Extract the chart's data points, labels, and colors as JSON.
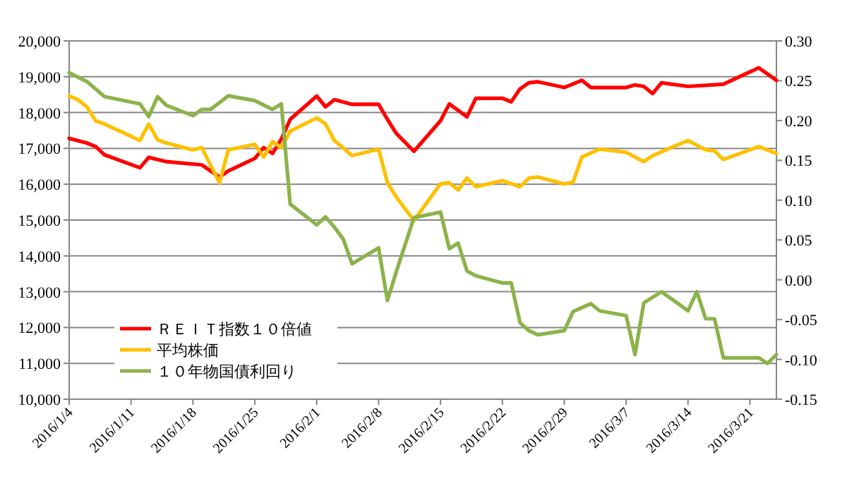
{
  "chart_data": {
    "type": "line",
    "legend": "bottom left",
    "grid": "y",
    "marker": "none",
    "line_style": "solid",
    "xlim": [
      "2016-01-04",
      "2016-03-24"
    ],
    "xticks": [
      {
        "value": "2016-01-04",
        "label": "2016/1/4"
      },
      {
        "value": "2016-01-11",
        "label": "2016/1/11"
      },
      {
        "value": "2016-01-18",
        "label": "2016/1/18"
      },
      {
        "value": "2016-01-25",
        "label": "2016/1/25"
      },
      {
        "value": "2016-02-01",
        "label": "2016/2/1"
      },
      {
        "value": "2016-02-08",
        "label": "2016/2/8"
      },
      {
        "value": "2016-02-15",
        "label": "2016/2/15"
      },
      {
        "value": "2016-02-22",
        "label": "2016/2/22"
      },
      {
        "value": "2016-02-29",
        "label": "2016/2/29"
      },
      {
        "value": "2016-03-07",
        "label": "2016/3/7"
      },
      {
        "value": "2016-03-14",
        "label": "2016/3/14"
      },
      {
        "value": "2016-03-21",
        "label": "2016/3/21"
      }
    ],
    "ylim": [
      10000,
      20000
    ],
    "yticks": [
      {
        "value": 10000,
        "label": "10,000"
      },
      {
        "value": 11000,
        "label": "11,000"
      },
      {
        "value": 12000,
        "label": "12,000"
      },
      {
        "value": 13000,
        "label": "13,000"
      },
      {
        "value": 14000,
        "label": "14,000"
      },
      {
        "value": 15000,
        "label": "15,000"
      },
      {
        "value": 16000,
        "label": "16,000"
      },
      {
        "value": 17000,
        "label": "17,000"
      },
      {
        "value": 18000,
        "label": "18,000"
      },
      {
        "value": 19000,
        "label": "19,000"
      },
      {
        "value": 20000,
        "label": "20,000"
      }
    ],
    "y2lim": [
      -0.15,
      0.3
    ],
    "y2ticks": [
      {
        "value": -0.15,
        "label": "-0.15"
      },
      {
        "value": -0.1,
        "label": "-0.10"
      },
      {
        "value": -0.05,
        "label": "-0.05"
      },
      {
        "value": 0,
        "label": "0.00"
      },
      {
        "value": 0.05,
        "label": "0.05"
      },
      {
        "value": 0.1,
        "label": "0.10"
      },
      {
        "value": 0.15,
        "label": "0.15"
      },
      {
        "value": 0.2,
        "label": "0.20"
      },
      {
        "value": 0.25,
        "label": "0.25"
      },
      {
        "value": 0.3,
        "label": "0.30"
      }
    ],
    "series": [
      {
        "name": "ＲＥＩＴ指数１０倍値",
        "color": "#ff0000",
        "x": [
          "2016-01-04",
          "2016-01-06",
          "2016-01-07",
          "2016-01-08",
          "2016-01-12",
          "2016-01-13",
          "2016-01-15",
          "2016-01-19",
          "2016-01-21",
          "2016-01-22",
          "2016-01-25",
          "2016-01-26",
          "2016-01-27",
          "2016-01-28",
          "2016-01-29",
          "2016-02-01",
          "2016-02-02",
          "2016-02-03",
          "2016-02-05",
          "2016-02-08",
          "2016-02-09",
          "2016-02-10",
          "2016-02-12",
          "2016-02-15",
          "2016-02-16",
          "2016-02-18",
          "2016-02-19",
          "2016-02-22",
          "2016-02-23",
          "2016-02-24",
          "2016-02-25",
          "2016-02-26",
          "2016-02-29",
          "2016-03-02",
          "2016-03-03",
          "2016-03-07",
          "2016-03-08",
          "2016-03-09",
          "2016-03-10",
          "2016-03-11",
          "2016-03-14",
          "2016-03-18",
          "2016-03-22",
          "2016-03-24"
        ],
        "values": [
          17280,
          17150,
          17050,
          16820,
          16460,
          16750,
          16630,
          16540,
          16200,
          16370,
          16720,
          17020,
          16860,
          17260,
          17810,
          18460,
          18160,
          18360,
          18230,
          18230,
          17810,
          17420,
          16920,
          17770,
          18240,
          17880,
          18400,
          18400,
          18300,
          18660,
          18830,
          18860,
          18700,
          18900,
          18700,
          18700,
          18770,
          18730,
          18530,
          18830,
          18730,
          18790,
          19250,
          18900
        ]
      },
      {
        "name": "平均株価",
        "color": "#ffc000",
        "x": [
          "2016-01-04",
          "2016-01-05",
          "2016-01-06",
          "2016-01-07",
          "2016-01-08",
          "2016-01-12",
          "2016-01-13",
          "2016-01-14",
          "2016-01-15",
          "2016-01-18",
          "2016-01-19",
          "2016-01-21",
          "2016-01-22",
          "2016-01-25",
          "2016-01-26",
          "2016-01-27",
          "2016-01-28",
          "2016-01-29",
          "2016-02-01",
          "2016-02-02",
          "2016-02-03",
          "2016-02-05",
          "2016-02-08",
          "2016-02-09",
          "2016-02-10",
          "2016-02-12",
          "2016-02-15",
          "2016-02-16",
          "2016-02-17",
          "2016-02-18",
          "2016-02-19",
          "2016-02-22",
          "2016-02-24",
          "2016-02-25",
          "2016-02-26",
          "2016-02-29",
          "2016-03-01",
          "2016-03-02",
          "2016-03-04",
          "2016-03-07",
          "2016-03-09",
          "2016-03-10",
          "2016-03-14",
          "2016-03-16",
          "2016-03-17",
          "2016-03-18",
          "2016-03-22",
          "2016-03-24"
        ],
        "values": [
          18460,
          18360,
          18160,
          17770,
          17680,
          17220,
          17680,
          17240,
          17150,
          16960,
          17020,
          16040,
          16960,
          17110,
          16760,
          17190,
          17020,
          17480,
          17850,
          17680,
          17220,
          16800,
          16980,
          16040,
          15640,
          14990,
          16010,
          16040,
          15840,
          16170,
          15930,
          16100,
          15930,
          16170,
          16200,
          16010,
          16060,
          16760,
          16980,
          16890,
          16630,
          16800,
          17220,
          16960,
          16930,
          16690,
          17050,
          16860
        ]
      },
      {
        "name": "１０年物国債利回り",
        "color": "#8cb34a",
        "axis": "y2",
        "x": [
          "2016-01-04",
          "2016-01-06",
          "2016-01-08",
          "2016-01-12",
          "2016-01-13",
          "2016-01-14",
          "2016-01-15",
          "2016-01-18",
          "2016-01-19",
          "2016-01-20",
          "2016-01-22",
          "2016-01-25",
          "2016-01-27",
          "2016-01-28",
          "2016-01-29",
          "2016-02-01",
          "2016-02-02",
          "2016-02-03",
          "2016-02-04",
          "2016-02-05",
          "2016-02-08",
          "2016-02-09",
          "2016-02-10",
          "2016-02-12",
          "2016-02-15",
          "2016-02-16",
          "2016-02-17",
          "2016-02-18",
          "2016-02-19",
          "2016-02-22",
          "2016-02-23",
          "2016-02-24",
          "2016-02-25",
          "2016-02-26",
          "2016-02-29",
          "2016-03-01",
          "2016-03-02",
          "2016-03-03",
          "2016-03-04",
          "2016-03-07",
          "2016-03-08",
          "2016-03-09",
          "2016-03-11",
          "2016-03-14",
          "2016-03-15",
          "2016-03-16",
          "2016-03-17",
          "2016-03-18",
          "2016-03-22",
          "2016-03-23",
          "2016-03-24"
        ],
        "values": [
          0.26,
          0.249,
          0.23,
          0.221,
          0.205,
          0.23,
          0.219,
          0.206,
          0.214,
          0.214,
          0.231,
          0.225,
          0.214,
          0.221,
          0.095,
          0.069,
          0.079,
          0.066,
          0.051,
          0.02,
          0.04,
          -0.026,
          0.01,
          0.078,
          0.085,
          0.039,
          0.046,
          0.011,
          0.005,
          -0.004,
          -0.004,
          -0.054,
          -0.064,
          -0.069,
          -0.064,
          -0.04,
          -0.035,
          -0.03,
          -0.039,
          -0.045,
          -0.094,
          -0.029,
          -0.015,
          -0.039,
          -0.015,
          -0.049,
          -0.049,
          -0.098,
          -0.098,
          -0.105,
          -0.094
        ]
      }
    ]
  }
}
